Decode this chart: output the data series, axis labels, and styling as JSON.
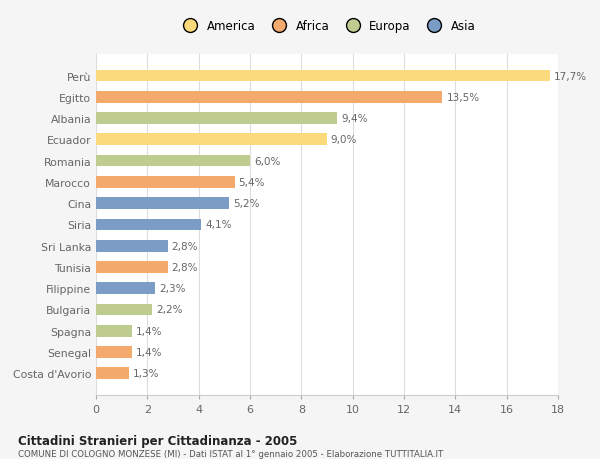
{
  "countries": [
    "Perù",
    "Egitto",
    "Albania",
    "Ecuador",
    "Romania",
    "Marocco",
    "Cina",
    "Siria",
    "Sri Lanka",
    "Tunisia",
    "Filippine",
    "Bulgaria",
    "Spagna",
    "Senegal",
    "Costa d'Avorio"
  ],
  "values": [
    17.7,
    13.5,
    9.4,
    9.0,
    6.0,
    5.4,
    5.2,
    4.1,
    2.8,
    2.8,
    2.3,
    2.2,
    1.4,
    1.4,
    1.3
  ],
  "labels": [
    "17,7%",
    "13,5%",
    "9,4%",
    "9,0%",
    "6,0%",
    "5,4%",
    "5,2%",
    "4,1%",
    "2,8%",
    "2,8%",
    "2,3%",
    "2,2%",
    "1,4%",
    "1,4%",
    "1,3%"
  ],
  "colors": [
    "#FADA7A",
    "#F4A96D",
    "#BFCC8F",
    "#FADA7A",
    "#BFCC8F",
    "#F4A96D",
    "#7B9DC5",
    "#7B9DC5",
    "#7B9DC5",
    "#F4A96D",
    "#7B9DC5",
    "#BFCC8F",
    "#BFCC8F",
    "#F4A96D",
    "#F4A96D"
  ],
  "continent_labels": [
    "America",
    "Africa",
    "Europa",
    "Asia"
  ],
  "continent_colors": [
    "#FADA7A",
    "#F4A96D",
    "#BFCC8F",
    "#7B9DC5"
  ],
  "xlim": [
    0,
    18
  ],
  "xticks": [
    0,
    2,
    4,
    6,
    8,
    10,
    12,
    14,
    16,
    18
  ],
  "title": "Cittadini Stranieri per Cittadinanza - 2005",
  "subtitle": "COMUNE DI COLOGNO MONZESE (MI) - Dati ISTAT al 1° gennaio 2005 - Elaborazione TUTTITALIA.IT",
  "background_color": "#f5f5f5",
  "plot_bg": "#ffffff",
  "grid_color": "#dddddd",
  "text_color": "#666666"
}
